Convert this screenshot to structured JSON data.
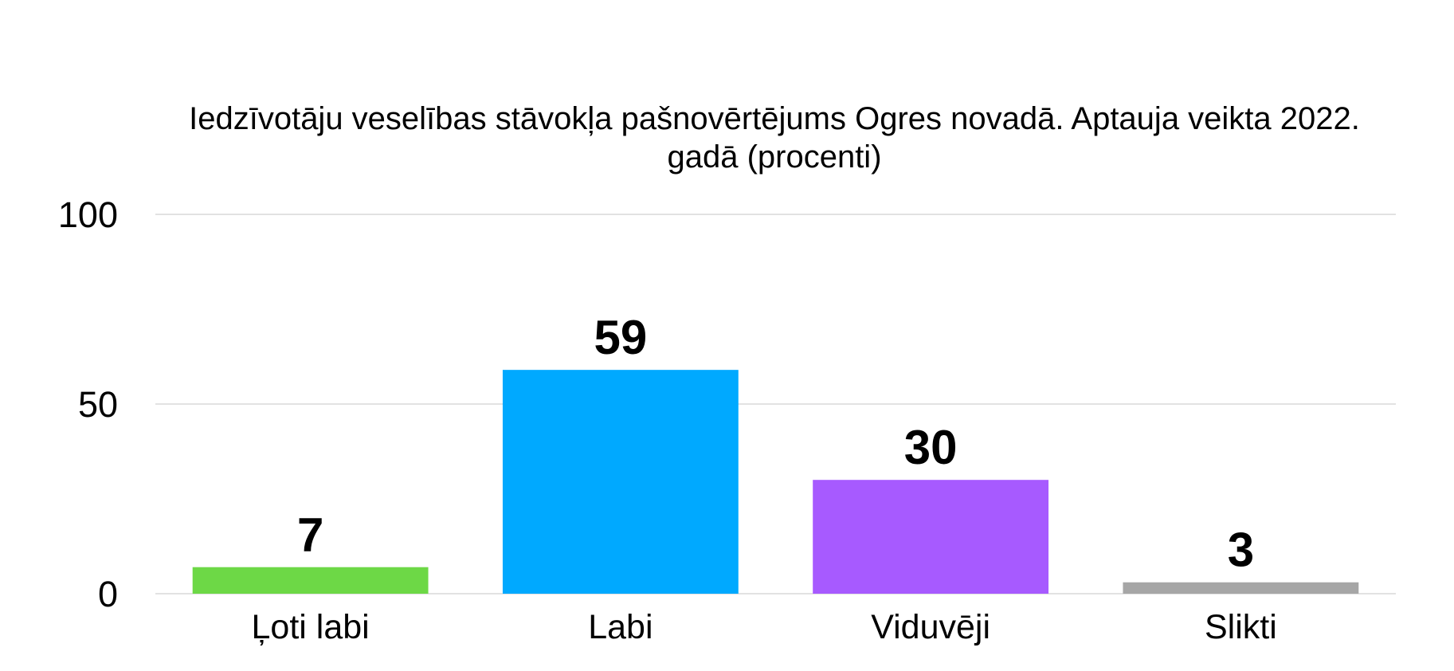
{
  "chart_data": {
    "type": "bar",
    "title_lines": [
      "Iedzīvotāju veselības stāvokļa pašnovērtējums Ogres novadā. Aptauja veikta 2022.",
      "gadā (procenti)"
    ],
    "categories": [
      "Ļoti labi",
      "Labi",
      "Viduvēji",
      "Slikti"
    ],
    "values": [
      7,
      59,
      30,
      3
    ],
    "value_labels": [
      "7",
      "59",
      "30",
      "3"
    ],
    "colors": [
      "#6dd846",
      "#00a9ff",
      "#a75aff",
      "#a6a6a6"
    ],
    "ylim": [
      0,
      100
    ],
    "yticks": [
      0,
      50,
      100
    ],
    "ytick_labels": [
      "0",
      "50",
      "100"
    ],
    "xlabel": "",
    "ylabel": "",
    "grid": true,
    "legend": "none"
  }
}
